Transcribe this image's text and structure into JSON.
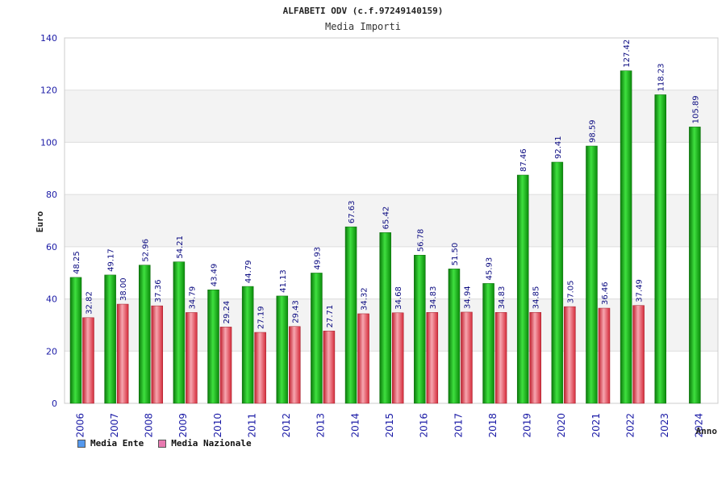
{
  "chart_data": {
    "type": "bar",
    "title": "ALFABETI ODV (c.f.97249140159)",
    "subtitle": "Media Importi",
    "ylabel": "Euro",
    "xlabel": "Anno",
    "ylim": [
      0,
      140
    ],
    "yticks": [
      0,
      20,
      40,
      60,
      80,
      100,
      120,
      140
    ],
    "categories": [
      "2006",
      "2007",
      "2008",
      "2009",
      "2010",
      "2011",
      "2012",
      "2013",
      "2014",
      "2015",
      "2016",
      "2017",
      "2018",
      "2019",
      "2020",
      "2021",
      "2022",
      "2023",
      "2024"
    ],
    "series": [
      {
        "name": "Media Ente",
        "color": "#10a810",
        "values": [
          48.25,
          49.17,
          52.96,
          54.21,
          43.49,
          44.79,
          41.13,
          49.93,
          67.63,
          65.42,
          56.78,
          51.5,
          45.93,
          87.46,
          92.41,
          98.59,
          127.42,
          118.23,
          105.89
        ],
        "labels": [
          "48.25",
          "49.17",
          "52.96",
          "54.21",
          "43.49",
          "44.79",
          "41.13",
          "49.93",
          "67.63",
          "65.42",
          "56.78",
          "51.50",
          "45.93",
          "87.46",
          "92.41",
          "98.59",
          "127.42",
          "118.23",
          "105.89"
        ]
      },
      {
        "name": "Media Nazionale",
        "color": "#e03040",
        "values": [
          32.82,
          38.0,
          37.36,
          34.79,
          29.24,
          27.19,
          29.43,
          27.71,
          34.32,
          34.68,
          34.83,
          34.94,
          34.83,
          34.85,
          37.05,
          36.46,
          37.49,
          null,
          null
        ],
        "labels": [
          "32.82",
          "38.00",
          "37.36",
          "34.79",
          "29.24",
          "27.19",
          "29.43",
          "27.71",
          "34.32",
          "34.68",
          "34.83",
          "34.94",
          "34.83",
          "34.85",
          "37.05",
          "36.46",
          "37.49",
          null,
          null
        ]
      }
    ],
    "grid": "horizontal bands",
    "legend_position": "bottom-left"
  },
  "legend": {
    "items": [
      {
        "label": "Media Ente",
        "color": "#5599ee"
      },
      {
        "label": "Media Nazionale",
        "color": "#e87ab0"
      }
    ]
  }
}
